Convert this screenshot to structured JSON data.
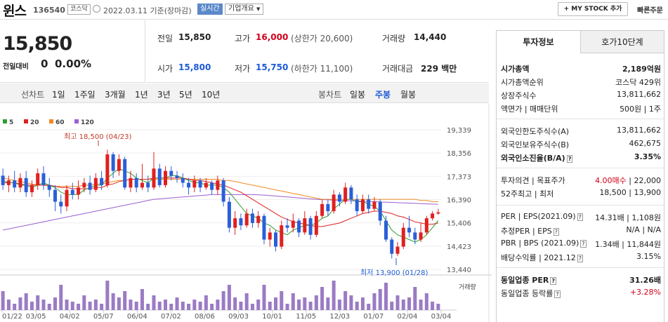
{
  "header": {
    "name": "윈스",
    "code": "136540",
    "market_badge": "코스닥",
    "date_text": "2022.03.11  기준(장마감)",
    "realtime_label": "실시간",
    "corp_info_label": "기업개요",
    "mystock_label": "+ MY STOCK 추가",
    "quick_order_label": "빠른주문"
  },
  "price": {
    "current": "15,850",
    "change_label": "전일대비",
    "change_value": "0",
    "change_pct": "0.00%"
  },
  "summary": {
    "prev_close_label": "전일",
    "prev_close": "15,850",
    "high_label": "고가",
    "high": "16,000",
    "upper_limit": "(상한가 20,600)",
    "volume_label": "거래량",
    "volume": "14,440",
    "open_label": "시가",
    "open": "15,800",
    "low_label": "저가",
    "low": "15,750",
    "lower_limit": "(하한가 11,100)",
    "amount_label": "거래대금",
    "amount": "229 백만"
  },
  "chart_tabs": {
    "line_label": "선차트",
    "periods": [
      "1일",
      "1주일",
      "3개월",
      "1년",
      "3년",
      "5년",
      "10년"
    ],
    "candle_label": "봉차트",
    "candles": [
      "일봉",
      "주봉",
      "월봉"
    ],
    "active_candle": "주봉"
  },
  "chart_data": {
    "type": "candlestick",
    "ma_legend": [
      {
        "name": "5",
        "color": "#2e9e2e"
      },
      {
        "name": "20",
        "color": "#e02020"
      },
      {
        "name": "60",
        "color": "#f08a24"
      },
      {
        "name": "120",
        "color": "#9b5fd1"
      }
    ],
    "y_ticks": [
      "19,339",
      "18,356",
      "17,373",
      "16,390",
      "15,406",
      "14,423",
      "13,440"
    ],
    "ylim": [
      13440,
      19339
    ],
    "x_labels": [
      "01/22",
      "03/05",
      "04/02",
      "05/07",
      "06/04",
      "07/02",
      "08/06",
      "09/03",
      "10/01",
      "11/05",
      "12/03",
      "01/07",
      "02/04",
      "03/04"
    ],
    "high_note": "최고 18,500 (04/23)",
    "low_note": "최저 13,900 (01/28)",
    "volume_label": "거래량",
    "up_color": "#e02020",
    "down_color": "#2a5fd8",
    "candles": [
      {
        "o": 17400,
        "c": 17000,
        "h": 17700,
        "l": 16800
      },
      {
        "o": 17000,
        "c": 17200,
        "h": 17400,
        "l": 16700
      },
      {
        "o": 17200,
        "c": 16900,
        "h": 17600,
        "l": 16700
      },
      {
        "o": 16900,
        "c": 17300,
        "h": 17500,
        "l": 16700
      },
      {
        "o": 17300,
        "c": 16700,
        "h": 17600,
        "l": 16500
      },
      {
        "o": 16700,
        "c": 17000,
        "h": 17200,
        "l": 16500
      },
      {
        "o": 17000,
        "c": 17500,
        "h": 17700,
        "l": 16800
      },
      {
        "o": 17500,
        "c": 17000,
        "h": 17800,
        "l": 16800
      },
      {
        "o": 17000,
        "c": 16800,
        "h": 17300,
        "l": 16500
      },
      {
        "o": 16800,
        "c": 16300,
        "h": 17000,
        "l": 15900
      },
      {
        "o": 16300,
        "c": 16100,
        "h": 16600,
        "l": 15800
      },
      {
        "o": 16100,
        "c": 16800,
        "h": 17000,
        "l": 15900
      },
      {
        "o": 16800,
        "c": 16600,
        "h": 17100,
        "l": 16400
      },
      {
        "o": 16600,
        "c": 16900,
        "h": 17200,
        "l": 16400
      },
      {
        "o": 16900,
        "c": 17100,
        "h": 17300,
        "l": 16700
      },
      {
        "o": 17100,
        "c": 16800,
        "h": 17400,
        "l": 16600
      },
      {
        "o": 16800,
        "c": 17300,
        "h": 17500,
        "l": 16700
      },
      {
        "o": 17300,
        "c": 17000,
        "h": 17600,
        "l": 16800
      },
      {
        "o": 17000,
        "c": 18300,
        "h": 18500,
        "l": 16900
      },
      {
        "o": 18300,
        "c": 17600,
        "h": 18400,
        "l": 17300
      },
      {
        "o": 17600,
        "c": 18100,
        "h": 18300,
        "l": 17400
      },
      {
        "o": 18100,
        "c": 16900,
        "h": 18200,
        "l": 16800
      },
      {
        "o": 16900,
        "c": 17300,
        "h": 17600,
        "l": 16700
      },
      {
        "o": 17300,
        "c": 16900,
        "h": 17500,
        "l": 16700
      },
      {
        "o": 16900,
        "c": 17100,
        "h": 17900,
        "l": 16800
      },
      {
        "o": 17100,
        "c": 16900,
        "h": 17400,
        "l": 16700
      },
      {
        "o": 16900,
        "c": 17700,
        "h": 18400,
        "l": 16800
      },
      {
        "o": 17700,
        "c": 17000,
        "h": 17900,
        "l": 16900
      },
      {
        "o": 17000,
        "c": 17600,
        "h": 17800,
        "l": 16900
      },
      {
        "o": 17600,
        "c": 17400,
        "h": 17800,
        "l": 17200
      },
      {
        "o": 17400,
        "c": 17300,
        "h": 17600,
        "l": 17100
      },
      {
        "o": 17300,
        "c": 17100,
        "h": 17500,
        "l": 16900
      },
      {
        "o": 17100,
        "c": 16900,
        "h": 17300,
        "l": 16600
      },
      {
        "o": 16900,
        "c": 17200,
        "h": 17400,
        "l": 16700
      },
      {
        "o": 17200,
        "c": 16900,
        "h": 17300,
        "l": 16700
      },
      {
        "o": 16900,
        "c": 17100,
        "h": 17300,
        "l": 16800
      },
      {
        "o": 17100,
        "c": 16800,
        "h": 17200,
        "l": 16600
      },
      {
        "o": 16800,
        "c": 17200,
        "h": 17400,
        "l": 16600
      },
      {
        "o": 17200,
        "c": 16300,
        "h": 17300,
        "l": 16100
      },
      {
        "o": 16300,
        "c": 15200,
        "h": 16500,
        "l": 15000
      },
      {
        "o": 15200,
        "c": 15600,
        "h": 15900,
        "l": 14900
      },
      {
        "o": 15600,
        "c": 15300,
        "h": 15800,
        "l": 15100
      },
      {
        "o": 15300,
        "c": 15800,
        "h": 16000,
        "l": 15200
      },
      {
        "o": 15800,
        "c": 15400,
        "h": 16000,
        "l": 15200
      },
      {
        "o": 15400,
        "c": 15700,
        "h": 15900,
        "l": 15200
      },
      {
        "o": 15700,
        "c": 14700,
        "h": 15800,
        "l": 14500
      },
      {
        "o": 14700,
        "c": 15000,
        "h": 15200,
        "l": 14400
      },
      {
        "o": 15000,
        "c": 14400,
        "h": 15100,
        "l": 14200
      },
      {
        "o": 14400,
        "c": 15300,
        "h": 15500,
        "l": 14300
      },
      {
        "o": 15300,
        "c": 15200,
        "h": 15600,
        "l": 15000
      },
      {
        "o": 15200,
        "c": 15500,
        "h": 15800,
        "l": 15000
      },
      {
        "o": 15500,
        "c": 15000,
        "h": 15600,
        "l": 14800
      },
      {
        "o": 15000,
        "c": 15600,
        "h": 15900,
        "l": 14900
      },
      {
        "o": 15600,
        "c": 14900,
        "h": 15700,
        "l": 14700
      },
      {
        "o": 14900,
        "c": 15700,
        "h": 15900,
        "l": 14800
      },
      {
        "o": 15700,
        "c": 16200,
        "h": 16400,
        "l": 15600
      },
      {
        "o": 16200,
        "c": 15900,
        "h": 16400,
        "l": 15700
      },
      {
        "o": 15900,
        "c": 16600,
        "h": 16800,
        "l": 15800
      },
      {
        "o": 16600,
        "c": 16300,
        "h": 16700,
        "l": 16100
      },
      {
        "o": 16300,
        "c": 16900,
        "h": 17100,
        "l": 16200
      },
      {
        "o": 16900,
        "c": 16400,
        "h": 17000,
        "l": 16200
      },
      {
        "o": 16400,
        "c": 15900,
        "h": 16600,
        "l": 15700
      },
      {
        "o": 15900,
        "c": 16400,
        "h": 16600,
        "l": 15800
      },
      {
        "o": 16400,
        "c": 16000,
        "h": 16600,
        "l": 15800
      },
      {
        "o": 16000,
        "c": 16300,
        "h": 16500,
        "l": 15900
      },
      {
        "o": 16300,
        "c": 15500,
        "h": 16400,
        "l": 15300
      },
      {
        "o": 15500,
        "c": 14700,
        "h": 15700,
        "l": 14600
      },
      {
        "o": 14700,
        "c": 14100,
        "h": 14800,
        "l": 13900
      },
      {
        "o": 14100,
        "c": 14400,
        "h": 14600,
        "l": 14000
      },
      {
        "o": 14400,
        "c": 15200,
        "h": 15400,
        "l": 14300
      },
      {
        "o": 15200,
        "c": 15000,
        "h": 15700,
        "l": 14800
      },
      {
        "o": 15000,
        "c": 14700,
        "h": 15200,
        "l": 14500
      },
      {
        "o": 14700,
        "c": 15000,
        "h": 15400,
        "l": 14600
      },
      {
        "o": 15000,
        "c": 15600,
        "h": 15700,
        "l": 14900
      },
      {
        "o": 15600,
        "c": 15800,
        "h": 15900,
        "l": 15500
      },
      {
        "o": 15800,
        "c": 15850,
        "h": 16000,
        "l": 15750
      }
    ],
    "ma5": [
      17200,
      17100,
      17100,
      17000,
      17000,
      16900,
      17000,
      17100,
      17000,
      16900,
      16700,
      16600,
      16600,
      16600,
      16800,
      16900,
      17000,
      17000,
      17300,
      17500,
      17700,
      17600,
      17500,
      17300,
      17200,
      17100,
      17300,
      17300,
      17300,
      17400,
      17400,
      17300,
      17200,
      17100,
      17100,
      17000,
      17000,
      17000,
      16900,
      16700,
      16400,
      16100,
      15800,
      15700,
      15600,
      15400,
      15300,
      15100,
      15000,
      14900,
      15100,
      15200,
      15300,
      15300,
      15400,
      15600,
      15700,
      16000,
      16200,
      16400,
      16400,
      16300,
      16300,
      16200,
      16100,
      15900,
      15500,
      15100,
      14900,
      14800,
      14700,
      14600,
      14700,
      14900,
      15200,
      15500
    ],
    "ma20": [
      17100,
      17100,
      17100,
      17050,
      17000,
      17000,
      17000,
      17000,
      17000,
      16950,
      16900,
      16900,
      16850,
      16850,
      16850,
      16850,
      16900,
      16900,
      17000,
      17050,
      17150,
      17200,
      17250,
      17250,
      17250,
      17250,
      17300,
      17300,
      17300,
      17300,
      17300,
      17300,
      17250,
      17200,
      17200,
      17150,
      17100,
      17050,
      17000,
      16900,
      16800,
      16700,
      16550,
      16400,
      16250,
      16100,
      15950,
      15800,
      15650,
      15550,
      15450,
      15400,
      15350,
      15300,
      15250,
      15250,
      15300,
      15350,
      15400,
      15500,
      15600,
      15700,
      15800,
      15850,
      15900,
      15900,
      15850,
      15800,
      15700,
      15650,
      15550,
      15450,
      15400,
      15350,
      15350,
      15400
    ],
    "ma60": [
      17300,
      17250,
      17200,
      17150,
      17100,
      17050,
      17000,
      17000,
      16950,
      16950,
      16950,
      16950,
      16950,
      16950,
      17000,
      17000,
      17050,
      17050,
      17100,
      17150,
      17200,
      17200,
      17250,
      17250,
      17250,
      17250,
      17250,
      17250,
      17250,
      17250,
      17250,
      17250,
      17250,
      17250,
      17250,
      17250,
      17250,
      17250,
      17200,
      17200,
      17150,
      17100,
      17050,
      17000,
      16950,
      16900,
      16850,
      16800,
      16750,
      16700,
      16650,
      16600,
      16550,
      16500,
      16450,
      16400,
      16400,
      16400,
      16400,
      16400,
      16400,
      16400,
      16400,
      16400,
      16400,
      16400,
      16400,
      16400,
      16400,
      16400,
      16400,
      16400,
      16350,
      16350,
      16300,
      16300
    ],
    "ma120": [
      15100,
      15150,
      15200,
      15250,
      15300,
      15350,
      15400,
      15450,
      15500,
      15550,
      15600,
      15650,
      15700,
      15750,
      15800,
      15850,
      15900,
      15950,
      16000,
      16050,
      16100,
      16150,
      16200,
      16250,
      16300,
      16350,
      16400,
      16420,
      16440,
      16460,
      16480,
      16500,
      16520,
      16540,
      16560,
      16580,
      16600,
      16600,
      16600,
      16600,
      16600,
      16600,
      16600,
      16600,
      16590,
      16580,
      16560,
      16540,
      16520,
      16500,
      16480,
      16460,
      16440,
      16420,
      16400,
      16390,
      16380,
      16370,
      16360,
      16350,
      16340,
      16330,
      16320,
      16310,
      16300,
      16290,
      16280,
      16270,
      16260,
      16250,
      16240,
      16230,
      16220,
      16210,
      16200,
      16190
    ],
    "volumes": [
      9,
      5,
      3,
      6,
      8,
      4,
      7,
      5,
      3,
      6,
      12,
      5,
      4,
      3,
      7,
      4,
      5,
      3,
      14,
      8,
      6,
      9,
      5,
      4,
      10,
      3,
      7,
      4,
      5,
      3,
      6,
      4,
      3,
      5,
      4,
      7,
      3,
      5,
      9,
      12,
      6,
      4,
      8,
      3,
      5,
      12,
      4,
      6,
      9,
      3,
      8,
      5,
      6,
      4,
      7,
      11,
      6,
      14,
      5,
      9,
      7,
      4,
      6,
      3,
      8,
      10,
      13,
      4,
      7,
      5,
      6,
      11,
      5,
      8,
      4,
      3
    ]
  },
  "invest": {
    "tab_active": "투자정보",
    "tab_other": "호가10단계",
    "rows": [
      {
        "label": "시가총액",
        "value": "2,189억원",
        "bold": true
      },
      {
        "label": "시가총액순위",
        "value": "코스닥 429위"
      },
      {
        "label": "상장주식수",
        "value": "13,811,662"
      },
      {
        "label": "액면가 | 매매단위",
        "value": "500원 | 1주"
      },
      {
        "label": "외국인한도주식수(A)",
        "value": "13,811,662"
      },
      {
        "label": "외국인보유주식수(B)",
        "value": "462,675"
      },
      {
        "label": "외국인소진율(B/A)",
        "value": "3.35%",
        "bold": true,
        "chip": "?"
      },
      {
        "label": "투자의견 | 목표주가",
        "value_red": "4.00매수",
        "value": "| 22,000"
      },
      {
        "label": "52주최고 | 최저",
        "value": "18,500 | 13,900"
      },
      {
        "label": "PER | EPS(2021.09)",
        "value": "14.31배 | 1,108원",
        "chip": "?"
      },
      {
        "label": "추정PER | EPS",
        "value": "N/A | N/A",
        "chip": "?"
      },
      {
        "label": "PBR | BPS (2021.09)",
        "value": "1.34배 | 11,844원",
        "chip": "?"
      },
      {
        "label": "배당수익률 | 2021.12",
        "value": "3.15%",
        "chip": "?"
      },
      {
        "label": "동일업종 PER",
        "value": "31.26배",
        "bold": true,
        "chip": "?"
      },
      {
        "label": "동일업종 등락률",
        "value_red": "+3.28%",
        "chip": "?"
      }
    ]
  }
}
